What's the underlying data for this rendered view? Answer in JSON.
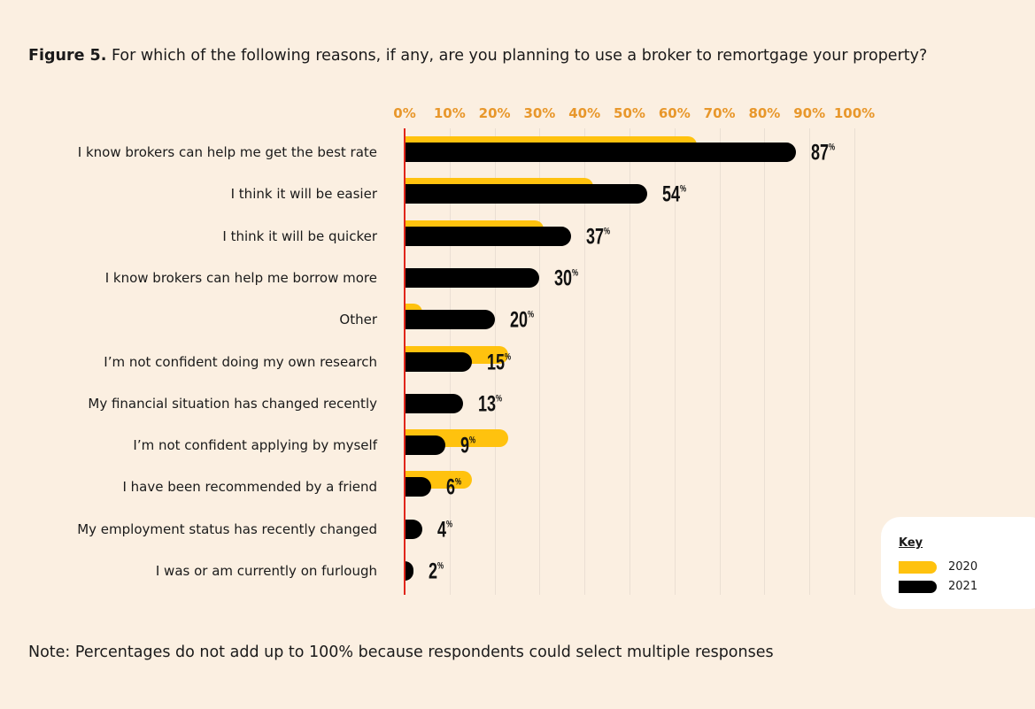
{
  "title": {
    "prefix": "Figure 5.",
    "text": "For which of the following reasons, if any, are you planning to use a broker to remortgage your property?"
  },
  "note": "Note: Percentages do not add up to 100% because respondents could select multiple responses",
  "chart_data": {
    "type": "bar",
    "orientation": "horizontal",
    "title": "For which of the following reasons, if any, are you planning to use a broker to remortgage your property?",
    "xlim": [
      0,
      100
    ],
    "x_ticks": [
      "0%",
      "10%",
      "20%",
      "30%",
      "40%",
      "50%",
      "60%",
      "70%",
      "80%",
      "90%",
      "100%"
    ],
    "grid": true,
    "legend_position": "bottom-right",
    "legend_title": "Key",
    "categories": [
      "I know brokers can help me get the best rate",
      "I think it will be easier",
      "I think it will be quicker",
      "I know brokers can help me borrow more",
      "Other",
      "I’m not confident doing my own research",
      "My financial situation has changed recently",
      "I’m not confident applying by myself",
      "I have been recommended by a friend",
      "My employment status has recently changed",
      "I was or am currently on furlough"
    ],
    "series": [
      {
        "name": "2020",
        "color": "#FFC20E",
        "values": [
          65,
          42,
          31,
          null,
          4,
          23,
          null,
          23,
          15,
          null,
          null
        ]
      },
      {
        "name": "2021",
        "color": "#000000",
        "values": [
          87,
          54,
          37,
          30,
          20,
          15,
          13,
          9,
          6,
          4,
          2
        ]
      }
    ],
    "data_labels": [
      "87",
      "54",
      "37",
      "30",
      "20",
      "15",
      "13",
      "9",
      "6",
      "4",
      "2"
    ],
    "label_unit": "%",
    "axis_color": "#E0261B",
    "tick_color": "#E8972B"
  }
}
